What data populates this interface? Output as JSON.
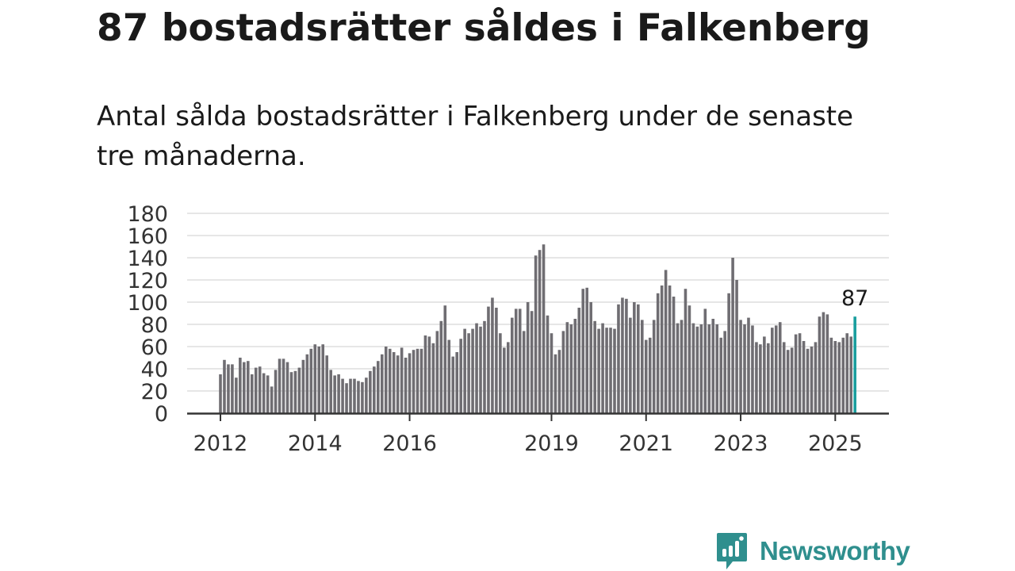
{
  "header": {
    "title": "87 bostadsrätter såldes i Falkenberg",
    "subtitle": "Antal sålda bostadsrätter i Falkenberg under de senaste tre månaderna."
  },
  "brand": {
    "name": "Newsworthy",
    "logo_icon": "newsworthy-bar-chart-logo",
    "color": "#2f8f8e"
  },
  "colors": {
    "bar": "#6f6d72",
    "highlight": "#1a9e9e",
    "grid": "#dddddd",
    "axis": "#333333"
  },
  "chart_data": {
    "type": "bar",
    "title": "",
    "xlabel": "",
    "ylabel": "",
    "ylim": [
      0,
      180
    ],
    "y_ticks": [
      "0",
      "20",
      "40",
      "60",
      "80",
      "100",
      "120",
      "140",
      "160",
      "180"
    ],
    "x_tick_labels": [
      {
        "label": "2012",
        "index": 0
      },
      {
        "label": "2014",
        "index": 24
      },
      {
        "label": "2016",
        "index": 48
      },
      {
        "label": "2019",
        "index": 84
      },
      {
        "label": "2021",
        "index": 108
      },
      {
        "label": "2023",
        "index": 132
      },
      {
        "label": "2025",
        "index": 156
      }
    ],
    "grid": true,
    "highlight_label": "87",
    "values": [
      35,
      48,
      44,
      44,
      32,
      50,
      46,
      47,
      35,
      41,
      42,
      36,
      34,
      24,
      39,
      49,
      49,
      46,
      37,
      38,
      41,
      48,
      53,
      58,
      62,
      60,
      62,
      52,
      39,
      34,
      35,
      31,
      27,
      31,
      31,
      29,
      28,
      32,
      38,
      42,
      47,
      53,
      60,
      58,
      55,
      52,
      59,
      50,
      54,
      57,
      58,
      58,
      70,
      69,
      63,
      74,
      83,
      97,
      66,
      51,
      55,
      67,
      76,
      72,
      76,
      81,
      78,
      83,
      96,
      104,
      95,
      72,
      59,
      64,
      86,
      94,
      94,
      74,
      100,
      92,
      142,
      147,
      152,
      88,
      72,
      53,
      57,
      74,
      82,
      80,
      85,
      95,
      112,
      113,
      100,
      83,
      76,
      81,
      77,
      77,
      76,
      98,
      104,
      103,
      86,
      100,
      98,
      84,
      66,
      68,
      84,
      108,
      115,
      129,
      115,
      105,
      81,
      84,
      112,
      97,
      81,
      78,
      80,
      94,
      80,
      85,
      80,
      68,
      74,
      108,
      140,
      120,
      84,
      80,
      86,
      79,
      64,
      62,
      69,
      63,
      77,
      79,
      82,
      64,
      57,
      59,
      71,
      72,
      65,
      58,
      60,
      64,
      87,
      91,
      89,
      68,
      65,
      64,
      68,
      72,
      69,
      87
    ]
  }
}
